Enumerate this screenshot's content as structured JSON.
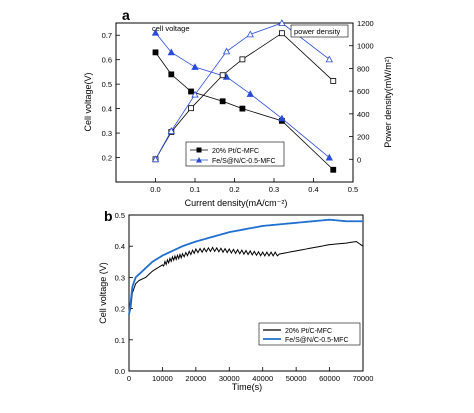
{
  "chart_data": [
    {
      "panel": "a",
      "type": "line",
      "xlabel": "Current density(mA/cm⁻²)",
      "ylabel": "Cell voltage(V)",
      "y2label": "Power density(mW/m²)",
      "xlim": [
        -0.1,
        0.5
      ],
      "ylim": [
        0.1,
        0.75
      ],
      "y2lim": [
        -200,
        1200
      ],
      "xticks": [
        "0.0",
        "0.1",
        "0.2",
        "0.3",
        "0.4",
        "0.5"
      ],
      "yticks": [
        "0.2",
        "0.3",
        "0.4",
        "0.5",
        "0.6",
        "0.7"
      ],
      "y2ticks": [
        "0",
        "200",
        "400",
        "600",
        "800",
        "1000",
        "1200"
      ],
      "annotations": [
        "cell voltage",
        "power density"
      ],
      "legend_position": "bottom-center",
      "series": [
        {
          "name": "20% Pt/C-MFC",
          "color": "#000000",
          "marker": "square",
          "axis": "left",
          "filled": true,
          "x": [
            0.0,
            0.04,
            0.09,
            0.17,
            0.22,
            0.32,
            0.45
          ],
          "y": [
            0.63,
            0.54,
            0.47,
            0.43,
            0.4,
            0.35,
            0.15
          ]
        },
        {
          "name": "Fe/S@N/C-0.5-MFC",
          "color": "#2a4bd7",
          "marker": "triangle",
          "axis": "left",
          "filled": true,
          "x": [
            0.0,
            0.04,
            0.1,
            0.18,
            0.24,
            0.32,
            0.44
          ],
          "y": [
            0.71,
            0.63,
            0.57,
            0.53,
            0.46,
            0.36,
            0.2
          ]
        },
        {
          "name": "20% Pt/C-MFC power density",
          "color": "#000000",
          "marker": "square",
          "axis": "right",
          "filled": false,
          "x": [
            0.0,
            0.04,
            0.09,
            0.17,
            0.22,
            0.32,
            0.45
          ],
          "y": [
            0,
            240,
            450,
            740,
            880,
            1110,
            690
          ]
        },
        {
          "name": "Fe/S@N/C-0.5-MFC power density",
          "color": "#2a4bd7",
          "marker": "triangle",
          "axis": "right",
          "filled": false,
          "x": [
            0.0,
            0.04,
            0.1,
            0.18,
            0.24,
            0.32,
            0.44
          ],
          "y": [
            0,
            250,
            570,
            950,
            1100,
            1200,
            880
          ]
        }
      ]
    },
    {
      "panel": "b",
      "type": "line",
      "xlabel": "Time(s)",
      "ylabel": "Cell voltage (V)",
      "xlim": [
        0,
        70000
      ],
      "ylim": [
        0,
        0.5
      ],
      "xticks": [
        "0",
        "10000",
        "20000",
        "30000",
        "40000",
        "50000",
        "60000",
        "70000"
      ],
      "yticks": [
        "0.0",
        "0.1",
        "0.2",
        "0.3",
        "0.4",
        "0.5"
      ],
      "legend_position": "bottom-right",
      "series": [
        {
          "name": "20% Pt/C-MFC",
          "color": "#000000",
          "x": [
            0,
            500,
            1000,
            2000,
            3000,
            5000,
            7000,
            10000,
            13000,
            16000,
            20000,
            25000,
            30000,
            35000,
            40000,
            45000,
            50000,
            55000,
            60000,
            65000,
            68000,
            70000
          ],
          "y": [
            0.18,
            0.2,
            0.25,
            0.28,
            0.29,
            0.3,
            0.32,
            0.34,
            0.36,
            0.37,
            0.385,
            0.39,
            0.385,
            0.38,
            0.375,
            0.375,
            0.385,
            0.395,
            0.405,
            0.41,
            0.415,
            0.4
          ]
        },
        {
          "name": "Fe/S@N/C-0.5-MFC",
          "color": "#1f6fd1",
          "x": [
            0,
            500,
            1000,
            2000,
            3000,
            5000,
            7000,
            10000,
            13000,
            16000,
            20000,
            25000,
            30000,
            35000,
            40000,
            45000,
            50000,
            55000,
            60000,
            65000,
            70000
          ],
          "y": [
            0.18,
            0.22,
            0.27,
            0.3,
            0.31,
            0.33,
            0.35,
            0.37,
            0.385,
            0.4,
            0.415,
            0.43,
            0.445,
            0.455,
            0.465,
            0.47,
            0.475,
            0.48,
            0.485,
            0.48,
            0.48
          ]
        }
      ]
    }
  ]
}
